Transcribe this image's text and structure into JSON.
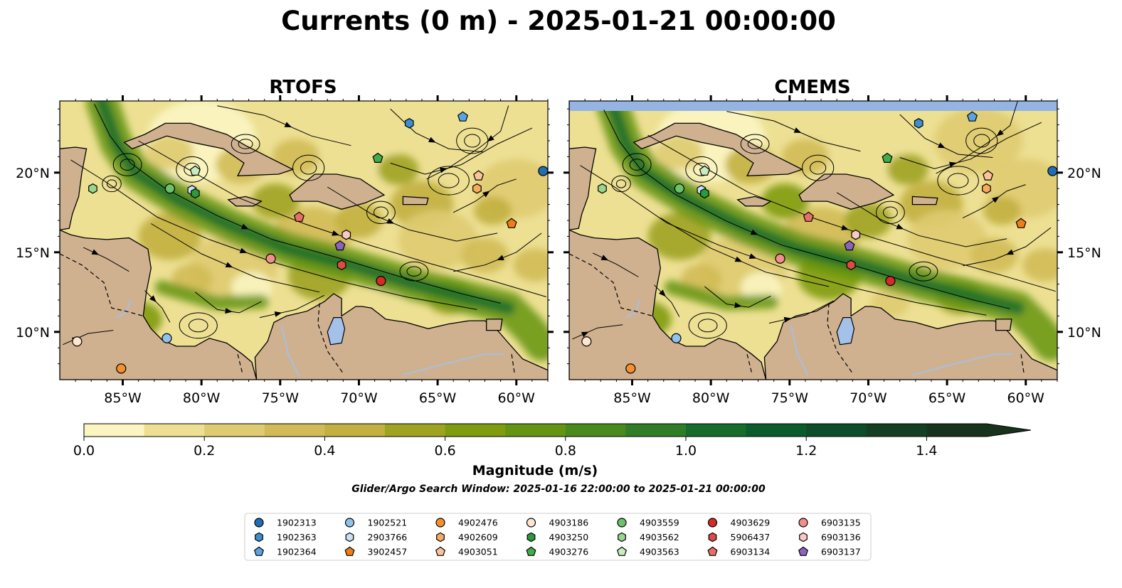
{
  "chart_data": {
    "type": "heatmap",
    "title": "Currents (0 m) - 2025-01-21 00:00:00",
    "panels": [
      {
        "title": "RTOFS"
      },
      {
        "title": "CMEMS"
      }
    ],
    "lon_range": [
      -89,
      -58
    ],
    "lat_range": [
      7,
      24.5
    ],
    "x_ticks": [
      -85,
      -80,
      -75,
      -70,
      -65,
      -60
    ],
    "x_tick_labels": [
      "85°W",
      "80°W",
      "75°W",
      "70°W",
      "65°W",
      "60°W"
    ],
    "y_ticks": [
      10,
      15,
      20
    ],
    "y_tick_labels": [
      "10°N",
      "15°N",
      "20°N"
    ],
    "colorbar": {
      "label": "Magnitude (m/s)",
      "min": 0.0,
      "max": 1.5,
      "levels": [
        0.0,
        0.1,
        0.2,
        0.3,
        0.4,
        0.5,
        0.6,
        0.7,
        0.8,
        0.9,
        1.0,
        1.1,
        1.2,
        1.3,
        1.4,
        1.5
      ],
      "colors": [
        "#fbf5c2",
        "#ede093",
        "#dfcb71",
        "#d2bb56",
        "#c2b040",
        "#9fa322",
        "#7f9b0e",
        "#649412",
        "#4a8a1c",
        "#2f7d24",
        "#166c2b",
        "#0b5c2c",
        "#0d4d29",
        "#143f22",
        "#18321b"
      ],
      "extend": "max",
      "tick_values": [
        0.0,
        0.2,
        0.4,
        0.6,
        0.8,
        1.0,
        1.2,
        1.4
      ],
      "tick_labels": [
        "0.0",
        "0.2",
        "0.4",
        "0.6",
        "0.8",
        "1.0",
        "1.2",
        "1.4"
      ]
    },
    "subtitle": "Glider/Argo Search Window: 2025-01-16 22:00:00 to 2025-01-21 00:00:00",
    "floats": [
      {
        "id": "1902313",
        "marker": "circle",
        "color": "#1f6eb4",
        "lon": -58.3,
        "lat": 20.1
      },
      {
        "id": "1902363",
        "marker": "hexagon",
        "color": "#3d8fd1",
        "lon": -66.8,
        "lat": 23.1
      },
      {
        "id": "1902364",
        "marker": "pentagon",
        "color": "#5aa3e0",
        "lon": -63.4,
        "lat": 23.5
      },
      {
        "id": "1902521",
        "marker": "circle",
        "color": "#8ec4ec",
        "lon": -82.2,
        "lat": 9.6
      },
      {
        "id": "2903766",
        "marker": "hexagon",
        "color": "#c7e2f7",
        "lon": -80.6,
        "lat": 18.9
      },
      {
        "id": "3902457",
        "marker": "pentagon",
        "color": "#f07d1a",
        "lon": -60.3,
        "lat": 16.8
      },
      {
        "id": "4902476",
        "marker": "circle",
        "color": "#f5902c",
        "lon": -85.1,
        "lat": 7.7
      },
      {
        "id": "4902609",
        "marker": "hexagon",
        "color": "#f8aa5e",
        "lon": -62.5,
        "lat": 19.0
      },
      {
        "id": "4903051",
        "marker": "pentagon",
        "color": "#fbc497",
        "lon": -62.4,
        "lat": 19.8
      },
      {
        "id": "4903186",
        "marker": "circle",
        "color": "#fde5cf",
        "lon": -87.9,
        "lat": 9.4
      },
      {
        "id": "4903250",
        "marker": "hexagon",
        "color": "#2a9a3a",
        "lon": -80.4,
        "lat": 18.7
      },
      {
        "id": "4903276",
        "marker": "pentagon",
        "color": "#41ad4a",
        "lon": -68.8,
        "lat": 20.9
      },
      {
        "id": "4903559",
        "marker": "circle",
        "color": "#6cc16b",
        "lon": -82.0,
        "lat": 19.0
      },
      {
        "id": "4903562",
        "marker": "hexagon",
        "color": "#98d68f",
        "lon": -86.9,
        "lat": 19.0
      },
      {
        "id": "4903563",
        "marker": "pentagon",
        "color": "#c8ecbf",
        "lon": -80.4,
        "lat": 20.1
      },
      {
        "id": "4903629",
        "marker": "circle",
        "color": "#d62a27",
        "lon": -68.6,
        "lat": 13.2
      },
      {
        "id": "5906437",
        "marker": "hexagon",
        "color": "#e04a44",
        "lon": -71.1,
        "lat": 14.2
      },
      {
        "id": "6903134",
        "marker": "pentagon",
        "color": "#ea6e68",
        "lon": -73.8,
        "lat": 17.2
      },
      {
        "id": "6903135",
        "marker": "circle",
        "color": "#f08f8c",
        "lon": -75.6,
        "lat": 14.6
      },
      {
        "id": "6903136",
        "marker": "hexagon",
        "color": "#f9c9c6",
        "lon": -70.8,
        "lat": 16.1
      },
      {
        "id": "6903137",
        "marker": "pentagon",
        "color": "#8a63bf",
        "lon": -71.2,
        "lat": 15.4
      }
    ]
  }
}
